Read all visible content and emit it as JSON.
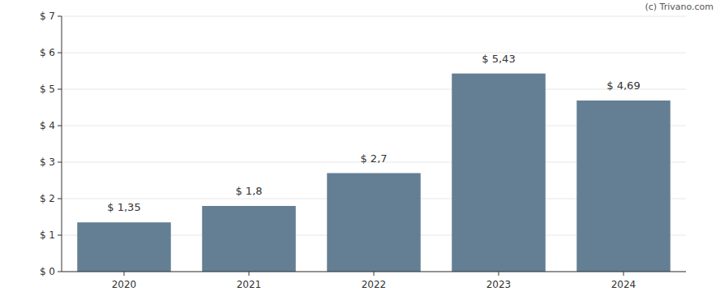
{
  "chart_data": {
    "type": "bar",
    "categories": [
      "2020",
      "2021",
      "2022",
      "2023",
      "2024"
    ],
    "values": [
      1.35,
      1.8,
      2.7,
      5.43,
      4.69
    ],
    "value_labels": [
      "$ 1,35",
      "$ 1,8",
      "$ 2,7",
      "$ 5,43",
      "$ 4,69"
    ],
    "color": "#647f94",
    "ylim": [
      0,
      7
    ],
    "yticks": [
      {
        "value": 0,
        "label": "$ 0"
      },
      {
        "value": 1,
        "label": "$ 1"
      },
      {
        "value": 2,
        "label": "$ 2"
      },
      {
        "value": 3,
        "label": "$ 3"
      },
      {
        "value": 4,
        "label": "$ 4"
      },
      {
        "value": 5,
        "label": "$ 5"
      },
      {
        "value": 6,
        "label": "$ 6"
      },
      {
        "value": 7,
        "label": "$ 7"
      }
    ],
    "grid": true,
    "data_labels": true,
    "annotations": [
      "(c) Trivano.com"
    ]
  }
}
